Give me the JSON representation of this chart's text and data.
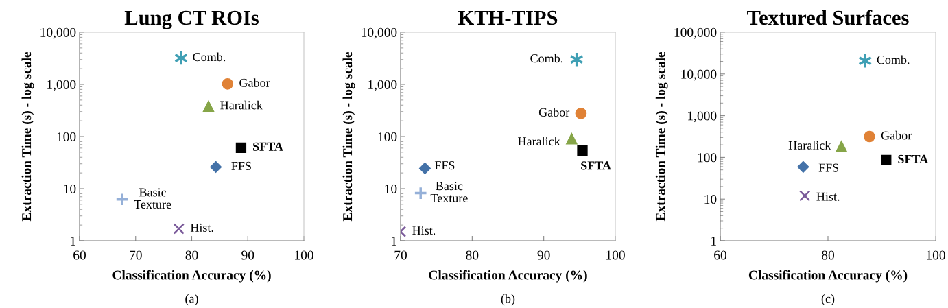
{
  "chart_data": [
    {
      "type": "scatter",
      "title": "Lung CT ROIs",
      "xlabel": "Classification Accuracy (%)",
      "ylabel": "Extraction Time (s) - log scale",
      "log": "y",
      "xlim": [
        60,
        100
      ],
      "xticks": [
        60,
        70,
        80,
        90,
        100
      ],
      "ylim": [
        1,
        10000
      ],
      "yticks": [
        1,
        10,
        100,
        {
          "value": 1000,
          "label": "1,000"
        },
        {
          "value": 10000,
          "label": "10,000"
        }
      ],
      "grid": false,
      "legend": false,
      "annotations": [
        "(a)"
      ],
      "series": [
        {
          "name": "Comb.",
          "color": "#3f9fb4",
          "x": [
            78.1
          ],
          "values": [
            3200
          ]
        },
        {
          "name": "Gabor",
          "color": "#e08236",
          "marker": "circle",
          "x": [
            86.4
          ],
          "values": [
            1020
          ]
        },
        {
          "name": "Haralick",
          "color": "#86a548",
          "marker": "triangle",
          "x": [
            83.0
          ],
          "values": [
            380
          ]
        },
        {
          "name": "SFTA",
          "color": "#000000",
          "marker": "square",
          "x": [
            88.8
          ],
          "values": [
            61
          ]
        },
        {
          "name": "FFS",
          "color": "#4472a8",
          "marker": "diamond",
          "x": [
            84.3
          ],
          "values": [
            26
          ]
        },
        {
          "name": "Basic Texture",
          "color": "#95b0d8",
          "marker": "cross",
          "x": [
            67.6
          ],
          "values": [
            6.2
          ]
        },
        {
          "name": "Hist.",
          "color": "#7a5a9a",
          "marker": "x",
          "x": [
            77.7
          ],
          "values": [
            1.7
          ]
        }
      ]
    },
    {
      "type": "scatter",
      "title": "KTH-TIPS",
      "xlabel": "Classification Accuracy (%)",
      "ylabel": "Extraction Time (s) - log scale",
      "log": "y",
      "xlim": [
        70,
        100
      ],
      "xticks": [
        70,
        80,
        90,
        100
      ],
      "ylim": [
        1,
        10000
      ],
      "yticks": [
        1,
        10,
        100,
        {
          "value": 1000,
          "label": "1,000"
        },
        {
          "value": 10000,
          "label": "10,000"
        }
      ],
      "grid": false,
      "legend": false,
      "annotations": [
        "(b)"
      ],
      "series": [
        {
          "name": "Comb.",
          "color": "#3f9fb4",
          "x": [
            94.6
          ],
          "values": [
            3000
          ]
        },
        {
          "name": "Gabor",
          "color": "#e08236",
          "marker": "circle",
          "x": [
            95.2
          ],
          "values": [
            277
          ]
        },
        {
          "name": "Haralick",
          "color": "#86a548",
          "marker": "triangle",
          "x": [
            93.9
          ],
          "values": [
            91
          ]
        },
        {
          "name": "SFTA",
          "color": "#000000",
          "marker": "square",
          "x": [
            95.4
          ],
          "values": [
            54
          ]
        },
        {
          "name": "FFS",
          "color": "#4472a8",
          "marker": "diamond",
          "x": [
            73.4
          ],
          "values": [
            24.5
          ]
        },
        {
          "name": "Basic Texture",
          "color": "#95b0d8",
          "marker": "cross",
          "x": [
            72.8
          ],
          "values": [
            8.2
          ]
        },
        {
          "name": "Hist.",
          "color": "#7a5a9a",
          "marker": "x",
          "x": [
            70.0
          ],
          "values": [
            1.5
          ]
        }
      ]
    },
    {
      "type": "scatter",
      "title": "Textured Surfaces",
      "xlabel": "Classification Accuracy (%)",
      "ylabel": "Extraction Time (s) - log scale",
      "log": "y",
      "xlim": [
        60,
        100
      ],
      "xticks": [
        60,
        80,
        100
      ],
      "ylim": [
        1,
        100000
      ],
      "yticks": [
        1,
        10,
        100,
        {
          "value": 1000,
          "label": "1,000"
        },
        {
          "value": 10000,
          "label": "10,000"
        },
        {
          "value": 100000,
          "label": "100,000"
        }
      ],
      "grid": false,
      "legend": false,
      "annotations": [
        "(c)"
      ],
      "series": [
        {
          "name": "Comb.",
          "color": "#3f9fb4",
          "x": [
            86.9
          ],
          "values": [
            20600
          ]
        },
        {
          "name": "Gabor",
          "color": "#e08236",
          "marker": "circle",
          "x": [
            87.7
          ],
          "values": [
            316
          ]
        },
        {
          "name": "Haralick",
          "color": "#86a548",
          "marker": "triangle",
          "x": [
            82.5
          ],
          "values": [
            183
          ]
        },
        {
          "name": "SFTA",
          "color": "#000000",
          "marker": "square",
          "x": [
            90.8
          ],
          "values": [
            86
          ]
        },
        {
          "name": "FFS",
          "color": "#4472a8",
          "marker": "diamond",
          "x": [
            75.4
          ],
          "values": [
            59
          ]
        },
        {
          "name": "Hist.",
          "color": "#7a5a9a",
          "marker": "x",
          "x": [
            75.7
          ],
          "values": [
            12
          ]
        }
      ]
    }
  ]
}
